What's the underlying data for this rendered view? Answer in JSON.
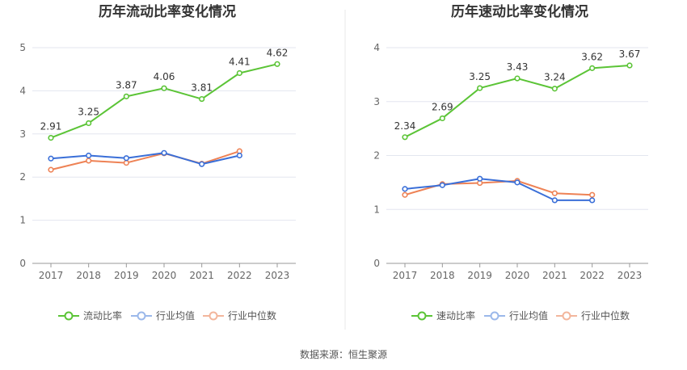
{
  "colors": {
    "company": "#5bc436",
    "industry_avg": "#3a6fd8",
    "industry_median": "#ee8255",
    "grid": "#e3e6ef",
    "divider": "#e8e8e8"
  },
  "legend_placement": "bottom-center",
  "source": "数据来源：恒生聚源",
  "chart_data": [
    {
      "type": "line",
      "title": "历年流动比率变化情况",
      "x": [
        "2017",
        "2018",
        "2019",
        "2020",
        "2021",
        "2022",
        "2023"
      ],
      "ylim": [
        0,
        5
      ],
      "yticks": [
        "0",
        "1",
        "2",
        "3",
        "4",
        "5"
      ],
      "grid": true,
      "series": [
        {
          "name": "流动比率",
          "values": [
            2.91,
            3.25,
            3.87,
            4.06,
            3.81,
            4.41,
            4.62
          ],
          "labels": [
            "2.91",
            "3.25",
            "3.87",
            "4.06",
            "3.81",
            "4.41",
            "4.62"
          ]
        },
        {
          "name": "行业均值",
          "values": [
            2.43,
            2.5,
            2.44,
            2.56,
            2.3,
            2.5,
            null
          ]
        },
        {
          "name": "行业中位数",
          "values": [
            2.17,
            2.38,
            2.33,
            2.55,
            2.31,
            2.6,
            null
          ]
        }
      ]
    },
    {
      "type": "line",
      "title": "历年速动比率变化情况",
      "x": [
        "2017",
        "2018",
        "2019",
        "2020",
        "2021",
        "2022",
        "2023"
      ],
      "ylim": [
        0,
        4
      ],
      "yticks": [
        "0",
        "1",
        "2",
        "3",
        "4"
      ],
      "grid": true,
      "series": [
        {
          "name": "速动比率",
          "values": [
            2.34,
            2.69,
            3.25,
            3.43,
            3.24,
            3.62,
            3.67
          ],
          "labels": [
            "2.34",
            "2.69",
            "3.25",
            "3.43",
            "3.24",
            "3.62",
            "3.67"
          ]
        },
        {
          "name": "行业均值",
          "values": [
            1.38,
            1.45,
            1.57,
            1.5,
            1.17,
            1.17,
            null
          ]
        },
        {
          "name": "行业中位数",
          "values": [
            1.27,
            1.47,
            1.49,
            1.53,
            1.3,
            1.27,
            null
          ]
        }
      ]
    }
  ]
}
